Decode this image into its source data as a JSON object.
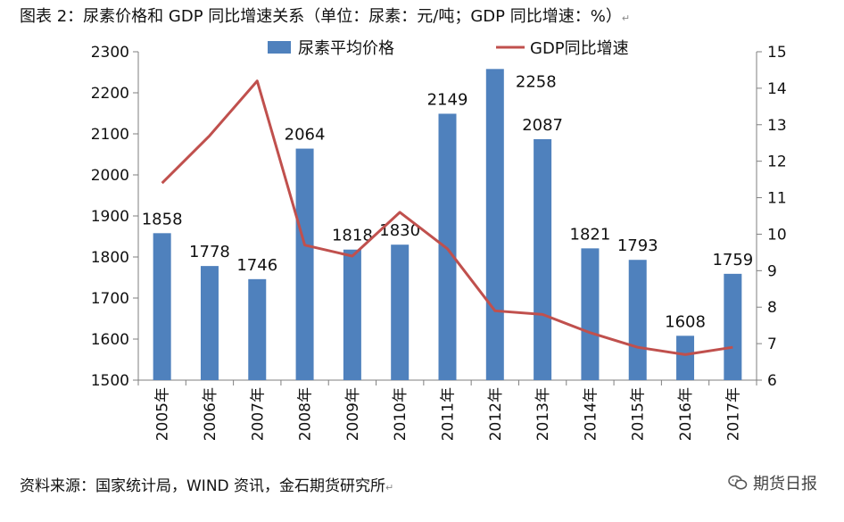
{
  "title": "图表 2：尿素价格和 GDP 同比增速关系（单位：尿素：元/吨；GDP 同比增速：%）",
  "source": "资料来源：国家统计局，WIND 资讯，金石期货研究所",
  "watermark": "期货日报",
  "colors": {
    "bar": "#4F81BD",
    "line": "#C0504D",
    "axis": "#7f7f7f"
  },
  "chart_data": {
    "type": "bar+line",
    "categories": [
      "2005年",
      "2006年",
      "2007年",
      "2008年",
      "2009年",
      "2010年",
      "2011年",
      "2012年",
      "2013年",
      "2014年",
      "2015年",
      "2016年",
      "2017年"
    ],
    "series": [
      {
        "name": "尿素平均价格",
        "type": "bar",
        "axis": "left",
        "values": [
          1858,
          1778,
          1746,
          2064,
          1818,
          1830,
          2149,
          2258,
          2087,
          1821,
          1793,
          1608,
          1759
        ]
      },
      {
        "name": "GDP同比增速",
        "type": "line",
        "axis": "right",
        "values": [
          11.4,
          12.7,
          14.2,
          9.7,
          9.4,
          10.6,
          9.6,
          7.9,
          7.8,
          7.3,
          6.9,
          6.7,
          6.9
        ]
      }
    ],
    "y_left": {
      "min": 1500,
      "max": 2300,
      "ticks": [
        1500,
        1600,
        1700,
        1800,
        1900,
        2000,
        2100,
        2200,
        2300
      ]
    },
    "y_right": {
      "min": 6,
      "max": 15,
      "ticks": [
        6,
        7,
        8,
        9,
        10,
        11,
        12,
        13,
        14,
        15
      ]
    },
    "legend_position": "top",
    "grid": false
  }
}
